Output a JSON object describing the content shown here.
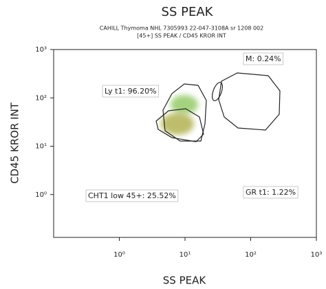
{
  "chart_data": {
    "type": "scatter",
    "title": "SS PEAK",
    "subtitle": [
      "CAHILL Thymoma NHL 7305993 22-047-3108A sr 1208 002",
      "[45+] SS PEAK / CD45 KROR INT"
    ],
    "x_label": "SS PEAK",
    "y_label": "CD45 KROR INT",
    "log_x": true,
    "log_y": true,
    "xlim": [
      0.1,
      1000
    ],
    "ylim": [
      0.13,
      1000
    ],
    "xticks": [
      {
        "value": 1,
        "label": "10⁰"
      },
      {
        "value": 10,
        "label": "10¹"
      },
      {
        "value": 100,
        "label": "10²"
      },
      {
        "value": 1000,
        "label": "10³"
      }
    ],
    "yticks": [
      {
        "value": 1,
        "label": "10⁰"
      },
      {
        "value": 10,
        "label": "10¹"
      },
      {
        "value": 100,
        "label": "10²"
      },
      {
        "value": 1000,
        "label": "10³"
      }
    ],
    "annotations": [
      "M: 0.24%",
      "Ly t1: 96.20%",
      "CHT1 low 45+: 25.52%",
      "GR t1: 1.22%"
    ]
  }
}
